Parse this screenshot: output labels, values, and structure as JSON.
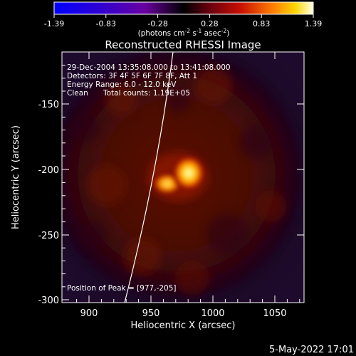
{
  "colorbar": {
    "ticks": [
      "-1.39",
      "-0.83",
      "-0.28",
      "0.28",
      "0.83",
      "1.39"
    ],
    "unit_prefix": "(photons cm",
    "unit_exp1": "-2",
    "unit_mid": " s",
    "unit_exp2": "-1",
    "unit_mid2": " asec",
    "unit_exp3": "-2",
    "unit_suffix": ")"
  },
  "plot": {
    "title": "Reconstructed RHESSI Image",
    "xlabel": "Heliocentric X (arcsec)",
    "ylabel": "Heliocentric Y (arcsec)",
    "x_ticks": [
      "900",
      "950",
      "1000",
      "1050"
    ],
    "y_ticks": [
      "-150",
      "-200",
      "-250",
      "-300"
    ],
    "xlim": [
      871,
      1066
    ],
    "ylim": [
      -302,
      -120
    ]
  },
  "annotations": {
    "time_range": "29-Dec-2004 13:35:08.000 to 13:41:08.000",
    "detectors": "Detectors: 3F 4F 5F 6F 7F 8F, Att 1",
    "energy": "Energy Range: 6.0 - 12.0 keV",
    "clean_label": "Clean",
    "total_counts": "Total counts: 1.19E+05",
    "peak": "Position of Peak = [977,-205]"
  },
  "footer": {
    "date": "5-May-2022 17:01"
  }
}
